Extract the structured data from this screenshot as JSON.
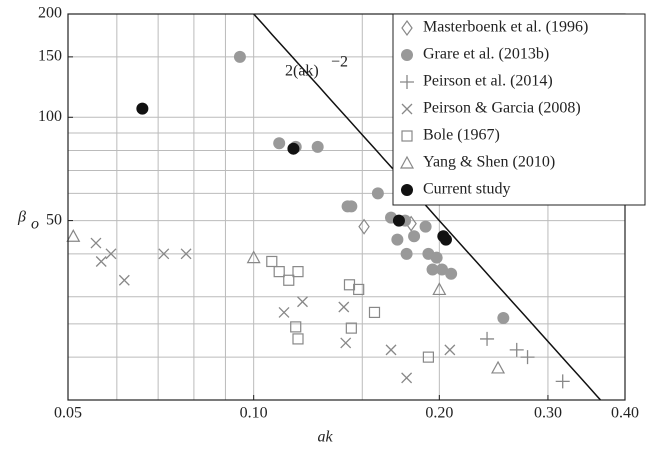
{
  "chart_data": {
    "type": "scatter",
    "x_label": "ak",
    "y_label": "β",
    "y_label_sub": "o",
    "log_x": true,
    "log_y": true,
    "grid": true,
    "legend": "upper right",
    "xlim": [
      0.05,
      0.4
    ],
    "ylim": [
      15,
      200
    ],
    "xticks": [
      0.05,
      {
        "value": 0.1,
        "label": "0.10"
      },
      {
        "value": 0.2,
        "label": "0.20"
      },
      {
        "value": 0.3,
        "label": "0.30"
      },
      {
        "value": 0.4,
        "label": "0.40"
      }
    ],
    "yticks": [
      50,
      100,
      150,
      200
    ],
    "xgrid": [
      0.06,
      0.07,
      0.08,
      0.09,
      0.15
    ],
    "ygrid": [
      20,
      25,
      30,
      40,
      60,
      70,
      80,
      90
    ],
    "reference_line": {
      "label": "2(ak)",
      "label_sup": "−2",
      "coefficient": 2,
      "exponent": -2
    },
    "series": [
      {
        "name": "Masterboenk et al. (1996)",
        "marker": "diamond",
        "color": "#888888",
        "x": [
          0.151,
          0.18
        ],
        "values": [
          48,
          49
        ]
      },
      {
        "name": "Grare et al. (2013b)",
        "marker": "circle-filled",
        "color": "#999999",
        "x": [
          0.095,
          0.11,
          0.117,
          0.127,
          0.142,
          0.144,
          0.159,
          0.167,
          0.176,
          0.171,
          0.182,
          0.19,
          0.177,
          0.192,
          0.198,
          0.195,
          0.202,
          0.209,
          0.254
        ],
        "values": [
          150,
          84,
          82,
          82,
          55,
          55,
          60,
          51,
          50,
          44,
          45,
          48,
          40,
          40,
          39,
          36,
          36,
          35,
          26
        ]
      },
      {
        "name": "Peirson et al. (2014)",
        "marker": "plus",
        "color": "#888888",
        "x": [
          0.239,
          0.267,
          0.278,
          0.317
        ],
        "values": [
          22.6,
          21,
          20,
          17
        ]
      },
      {
        "name": "Peirson & Garcia (2008)",
        "marker": "cross",
        "color": "#888888",
        "x": [
          0.0555,
          0.0566,
          0.0587,
          0.0715,
          0.0777,
          0.0617,
          0.112,
          0.12,
          0.14,
          0.141,
          0.167,
          0.177,
          0.208
        ],
        "values": [
          43,
          38,
          40,
          40,
          40,
          33.5,
          27,
          29,
          28,
          22,
          21,
          17.4,
          21
        ]
      },
      {
        "name": "Bole (1967)",
        "marker": "square",
        "color": "#888888",
        "x": [
          0.107,
          0.11,
          0.114,
          0.118,
          0.117,
          0.118,
          0.143,
          0.148,
          0.144,
          0.157,
          0.192
        ],
        "values": [
          38,
          35.5,
          33.5,
          35.5,
          24.5,
          22.6,
          32.5,
          31.5,
          24.3,
          27,
          20
        ]
      },
      {
        "name": "Yang & Shen (2010)",
        "marker": "triangle",
        "color": "#888888",
        "x": [
          0.051,
          0.1,
          0.2,
          0.249
        ],
        "values": [
          45,
          39,
          31.5,
          18.6
        ]
      },
      {
        "name": "Current study",
        "marker": "circle-filled",
        "color": "#111111",
        "x": [
          0.066,
          0.116,
          0.172,
          0.203,
          0.205
        ],
        "values": [
          106,
          81,
          50,
          45,
          44
        ]
      }
    ]
  }
}
